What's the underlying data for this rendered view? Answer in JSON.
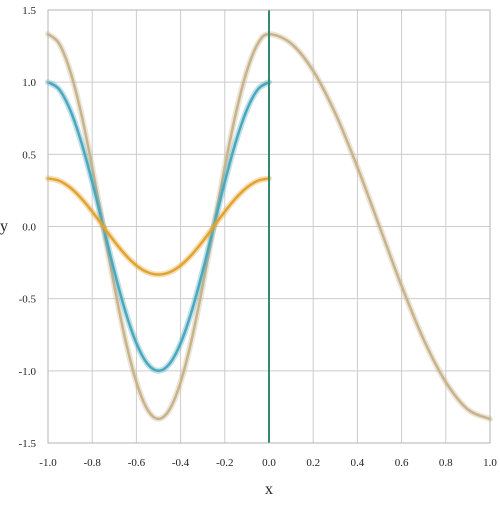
{
  "chart_data": {
    "type": "line",
    "title": "",
    "xlabel": "x",
    "ylabel": "y",
    "xlim": [
      -1.0,
      1.0
    ],
    "ylim": [
      -1.5,
      1.5
    ],
    "x_ticks": [
      -1.0,
      -0.8,
      -0.6,
      -0.4,
      -0.2,
      0.0,
      0.2,
      0.4,
      0.6,
      0.8,
      1.0
    ],
    "y_ticks": [
      1.5,
      1.0,
      0.5,
      0.0,
      -0.5,
      -1.0,
      -1.5
    ],
    "x_tick_labels": [
      "-1.0",
      "-0.8",
      "-0.6",
      "-0.4",
      "-0.2",
      "0.0",
      "0.2",
      "0.4",
      "0.6",
      "0.8",
      "1.0"
    ],
    "y_tick_labels": [
      "1.5",
      "1.0",
      "0.5",
      "0.0",
      "-0.5",
      "-1.0",
      "-1.5"
    ],
    "grid": true,
    "vertical_line": {
      "x": 0.0,
      "color": "#2e8b6f"
    },
    "series": [
      {
        "color": "#c8b48c",
        "x": [
          -1.0,
          -0.95,
          -0.9,
          -0.85,
          -0.8,
          -0.75,
          -0.7,
          -0.65,
          -0.6,
          -0.55,
          -0.5,
          -0.45,
          -0.4,
          -0.35,
          -0.3,
          -0.25,
          -0.2,
          -0.15,
          -0.1,
          -0.05,
          0.0,
          0.1,
          0.2,
          0.3,
          0.4,
          0.5,
          0.6,
          0.7,
          0.8,
          0.9,
          1.0
        ],
        "y": [
          1.333,
          1.268,
          1.078,
          0.784,
          0.412,
          0.0,
          -0.412,
          -0.784,
          -1.078,
          -1.268,
          -1.333,
          -1.268,
          -1.078,
          -0.784,
          -0.412,
          0.0,
          0.412,
          0.784,
          1.078,
          1.268,
          1.333,
          1.268,
          1.078,
          0.784,
          0.412,
          0.0,
          -0.412,
          -0.784,
          -1.078,
          -1.268,
          -1.333
        ]
      },
      {
        "color": "#4aa8bd",
        "x": [
          -1.0,
          -0.95,
          -0.9,
          -0.85,
          -0.8,
          -0.75,
          -0.7,
          -0.65,
          -0.6,
          -0.55,
          -0.5,
          -0.45,
          -0.4,
          -0.35,
          -0.3,
          -0.25,
          -0.2,
          -0.15,
          -0.1,
          -0.05,
          0.0
        ],
        "y": [
          1.0,
          0.951,
          0.809,
          0.588,
          0.309,
          0.0,
          -0.309,
          -0.588,
          -0.809,
          -0.951,
          -1.0,
          -0.951,
          -0.809,
          -0.588,
          -0.309,
          0.0,
          0.309,
          0.588,
          0.809,
          0.951,
          1.0
        ]
      },
      {
        "color": "#e3a330",
        "x": [
          -1.0,
          -0.95,
          -0.9,
          -0.85,
          -0.8,
          -0.75,
          -0.7,
          -0.65,
          -0.6,
          -0.55,
          -0.5,
          -0.45,
          -0.4,
          -0.35,
          -0.3,
          -0.25,
          -0.2,
          -0.15,
          -0.1,
          -0.05,
          0.0
        ],
        "y": [
          0.333,
          0.317,
          0.27,
          0.196,
          0.103,
          0.0,
          -0.103,
          -0.196,
          -0.27,
          -0.317,
          -0.333,
          -0.317,
          -0.27,
          -0.196,
          -0.103,
          0.0,
          0.103,
          0.196,
          0.27,
          0.317,
          0.333
        ]
      }
    ]
  }
}
